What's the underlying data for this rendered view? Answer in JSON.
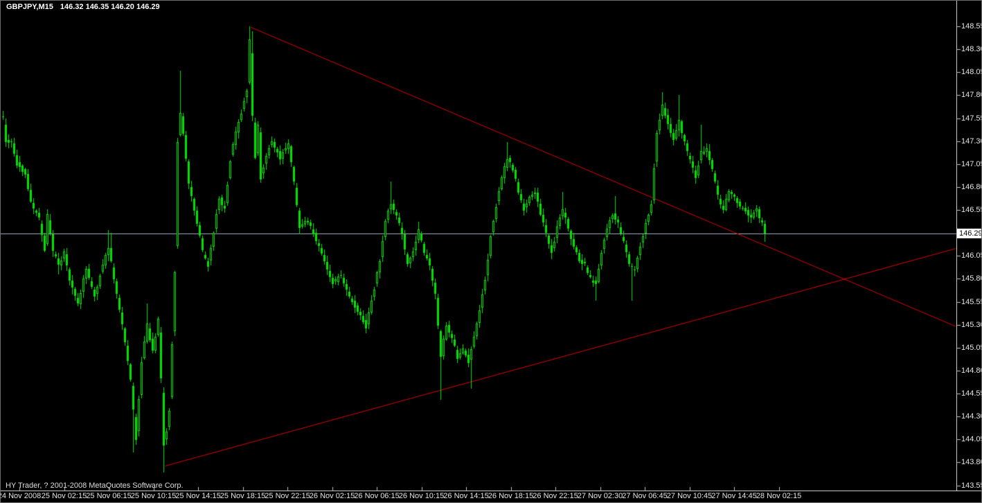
{
  "window": {
    "title_symbol": "GBPJPY,M15",
    "title_quotes": "146.32 146.35 146.20 146.29",
    "copyright": "HY Trader, ? 2001-2008 MetaQuotes Software Corp."
  },
  "colors": {
    "background": "#000000",
    "candle": "#00e400",
    "candle_fill_hollow": "#000000",
    "trendline": "#dd0000",
    "price_line": "#a4aec4",
    "axis_line": "#c8c8c8",
    "axis_text": "#e4e4e4",
    "tag_bg": "#ffffff",
    "tag_text": "#000000",
    "title_text": "#ffffff"
  },
  "chart_data": {
    "type": "candlestick",
    "symbol": "GBPJPY",
    "timeframe": "M15",
    "title": "GBPJPY,M15",
    "ohlc_display": {
      "open": 146.32,
      "high": 146.35,
      "low": 146.2,
      "close": 146.29
    },
    "current_price": 146.29,
    "legend_position": "none",
    "grid": false,
    "y_axis": {
      "min": 143.55,
      "max": 148.55,
      "step": 0.25,
      "ticks": [
        "148.55",
        "148.30",
        "148.05",
        "147.80",
        "147.55",
        "147.30",
        "147.05",
        "146.80",
        "146.55",
        "146.30",
        "146.05",
        "145.80",
        "145.55",
        "145.30",
        "145.05",
        "144.80",
        "144.55",
        "144.30",
        "144.05",
        "143.80",
        "143.55"
      ]
    },
    "x_axis": {
      "labels": [
        "24 Nov 2008",
        "25 Nov 02:15",
        "25 Nov 06:15",
        "25 Nov 10:15",
        "25 Nov 14:15",
        "25 Nov 18:15",
        "25 Nov 22:15",
        "26 Nov 02:15",
        "26 Nov 06:15",
        "26 Nov 10:15",
        "26 Nov 14:15",
        "26 Nov 18:15",
        "26 Nov 22:15",
        "27 Nov 02:30",
        "27 Nov 06:45",
        "27 Nov 10:45",
        "27 Nov 14:45",
        "28 Nov 02:15"
      ]
    },
    "candles": {
      "count": 276,
      "price_path": [
        [
          0,
          147.55
        ],
        [
          1,
          147.3
        ],
        [
          3,
          147.28
        ],
        [
          5,
          147.05
        ],
        [
          8,
          146.95
        ],
        [
          10,
          146.63
        ],
        [
          13,
          146.45
        ],
        [
          15,
          146.12
        ],
        [
          16,
          146.5
        ],
        [
          18,
          146.1
        ],
        [
          20,
          145.95
        ],
        [
          22,
          146.08
        ],
        [
          24,
          145.8
        ],
        [
          27,
          145.52
        ],
        [
          30,
          145.92
        ],
        [
          33,
          145.6
        ],
        [
          36,
          145.95
        ],
        [
          38,
          146.15
        ],
        [
          40,
          145.8
        ],
        [
          43,
          145.3
        ],
        [
          46,
          144.7
        ],
        [
          48,
          144.05
        ],
        [
          50,
          144.9
        ],
        [
          52,
          145.3
        ],
        [
          54,
          145.0
        ],
        [
          56,
          145.35
        ],
        [
          57,
          144.7
        ],
        [
          58,
          144.0
        ],
        [
          59,
          144.15
        ],
        [
          60,
          144.35
        ],
        [
          61,
          145.1
        ],
        [
          62,
          145.85
        ],
        [
          63,
          147.3
        ],
        [
          64,
          147.6
        ],
        [
          65,
          147.4
        ],
        [
          67,
          146.85
        ],
        [
          70,
          146.4
        ],
        [
          72,
          146.1
        ],
        [
          74,
          145.95
        ],
        [
          76,
          146.3
        ],
        [
          78,
          146.68
        ],
        [
          80,
          146.55
        ],
        [
          82,
          147.1
        ],
        [
          84,
          147.4
        ],
        [
          86,
          147.6
        ],
        [
          87,
          147.75
        ],
        [
          88,
          147.85
        ],
        [
          89,
          148.4
        ],
        [
          90,
          147.6
        ],
        [
          91,
          147.1
        ],
        [
          92,
          147.5
        ],
        [
          93,
          146.9
        ],
        [
          95,
          147.15
        ],
        [
          97,
          147.3
        ],
        [
          100,
          147.12
        ],
        [
          103,
          147.28
        ],
        [
          105,
          146.85
        ],
        [
          107,
          146.35
        ],
        [
          110,
          146.45
        ],
        [
          113,
          146.22
        ],
        [
          116,
          146.0
        ],
        [
          119,
          145.75
        ],
        [
          122,
          145.85
        ],
        [
          125,
          145.6
        ],
        [
          128,
          145.45
        ],
        [
          131,
          145.28
        ],
        [
          134,
          145.7
        ],
        [
          136,
          146.0
        ],
        [
          138,
          146.45
        ],
        [
          140,
          146.62
        ],
        [
          142,
          146.48
        ],
        [
          144,
          146.3
        ],
        [
          146,
          145.95
        ],
        [
          148,
          146.1
        ],
        [
          150,
          146.32
        ],
        [
          152,
          146.1
        ],
        [
          154,
          145.95
        ],
        [
          156,
          145.65
        ],
        [
          158,
          144.95
        ],
        [
          160,
          145.3
        ],
        [
          162,
          145.15
        ],
        [
          164,
          144.95
        ],
        [
          166,
          145.05
        ],
        [
          168,
          144.9
        ],
        [
          170,
          145.15
        ],
        [
          172,
          145.45
        ],
        [
          174,
          145.8
        ],
        [
          176,
          146.25
        ],
        [
          178,
          146.6
        ],
        [
          180,
          146.9
        ],
        [
          182,
          147.12
        ],
        [
          184,
          147.0
        ],
        [
          186,
          146.75
        ],
        [
          188,
          146.55
        ],
        [
          190,
          146.68
        ],
        [
          192,
          146.75
        ],
        [
          194,
          146.5
        ],
        [
          196,
          146.3
        ],
        [
          198,
          146.1
        ],
        [
          200,
          146.35
        ],
        [
          202,
          146.55
        ],
        [
          204,
          146.35
        ],
        [
          206,
          146.15
        ],
        [
          208,
          146.0
        ],
        [
          210,
          145.95
        ],
        [
          212,
          145.8
        ],
        [
          214,
          145.75
        ],
        [
          216,
          146.1
        ],
        [
          218,
          146.35
        ],
        [
          220,
          146.5
        ],
        [
          222,
          146.4
        ],
        [
          224,
          146.2
        ],
        [
          226,
          145.95
        ],
        [
          228,
          145.9
        ],
        [
          230,
          146.15
        ],
        [
          232,
          146.4
        ],
        [
          234,
          146.6
        ],
        [
          236,
          147.4
        ],
        [
          238,
          147.68
        ],
        [
          240,
          147.5
        ],
        [
          242,
          147.3
        ],
        [
          244,
          147.52
        ],
        [
          246,
          147.28
        ],
        [
          248,
          147.08
        ],
        [
          250,
          146.9
        ],
        [
          252,
          147.18
        ],
        [
          254,
          147.22
        ],
        [
          256,
          147.0
        ],
        [
          258,
          146.7
        ],
        [
          260,
          146.55
        ],
        [
          262,
          146.75
        ],
        [
          264,
          146.68
        ],
        [
          266,
          146.6
        ],
        [
          268,
          146.55
        ],
        [
          270,
          146.45
        ],
        [
          272,
          146.55
        ],
        [
          274,
          146.4
        ],
        [
          275,
          146.29
        ]
      ],
      "wick_extremes": [
        [
          0,
          "h",
          147.63
        ],
        [
          16,
          "h",
          146.56
        ],
        [
          20,
          "l",
          145.85
        ],
        [
          38,
          "h",
          146.33
        ],
        [
          39,
          "h",
          146.3
        ],
        [
          47,
          "l",
          143.91
        ],
        [
          52,
          "h",
          145.53
        ],
        [
          58,
          "l",
          143.69
        ],
        [
          64,
          "h",
          148.07
        ],
        [
          89,
          "h",
          148.55
        ],
        [
          90,
          "h",
          148.5
        ],
        [
          131,
          "l",
          145.23
        ],
        [
          140,
          "h",
          146.86
        ],
        [
          150,
          "h",
          146.42
        ],
        [
          158,
          "l",
          144.48
        ],
        [
          169,
          "l",
          144.6
        ],
        [
          182,
          "h",
          147.29
        ],
        [
          202,
          "h",
          146.75
        ],
        [
          214,
          "l",
          145.56
        ],
        [
          221,
          "h",
          146.7
        ],
        [
          227,
          "l",
          145.56
        ],
        [
          238,
          "h",
          147.83
        ],
        [
          244,
          "h",
          147.8
        ],
        [
          252,
          "h",
          147.48
        ],
        [
          275,
          "l",
          146.2
        ]
      ]
    },
    "trendlines": [
      {
        "name": "descending-resistance",
        "i1": 89.4,
        "price1": 148.54,
        "i2": 344,
        "price2": 145.28
      },
      {
        "name": "ascending-support",
        "i1": 58.4,
        "price1": 143.76,
        "i2": 344,
        "price2": 146.13
      }
    ]
  }
}
